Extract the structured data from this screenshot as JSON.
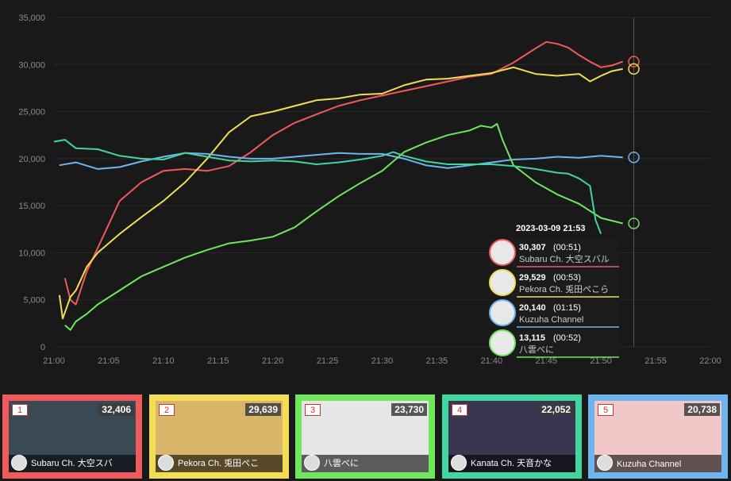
{
  "chart_data": {
    "type": "line",
    "x_ticks": [
      "21:00",
      "21:05",
      "21:10",
      "21:15",
      "21:20",
      "21:25",
      "21:30",
      "21:35",
      "21:40",
      "21:45",
      "21:50",
      "21:55",
      "22:00"
    ],
    "y_ticks": [
      "0",
      "5,000",
      "10,000",
      "15,000",
      "20,000",
      "25,000",
      "30,000",
      "35,000"
    ],
    "xlim": [
      "21:00",
      "22:00"
    ],
    "ylim": [
      0,
      35000
    ],
    "grid": true,
    "cursor_time": "21:53",
    "series": [
      {
        "name": "Subaru Ch. 大空スバル",
        "color": "#f05a5a",
        "points": [
          [
            1.0,
            7300
          ],
          [
            1.5,
            5000
          ],
          [
            2.0,
            4500
          ],
          [
            3.0,
            8000
          ],
          [
            4.0,
            10500
          ],
          [
            5.0,
            13000
          ],
          [
            6.0,
            15500
          ],
          [
            8.0,
            17500
          ],
          [
            10.0,
            18700
          ],
          [
            12.0,
            18900
          ],
          [
            14.0,
            18700
          ],
          [
            16.0,
            19200
          ],
          [
            18.0,
            20700
          ],
          [
            20.0,
            22500
          ],
          [
            22.0,
            23800
          ],
          [
            24.0,
            24700
          ],
          [
            26.0,
            25600
          ],
          [
            28.0,
            26200
          ],
          [
            30.0,
            26700
          ],
          [
            32.0,
            27200
          ],
          [
            34.0,
            27700
          ],
          [
            36.0,
            28200
          ],
          [
            38.0,
            28700
          ],
          [
            40.0,
            29000
          ],
          [
            42.0,
            30200
          ],
          [
            44.0,
            31700
          ],
          [
            45.0,
            32400
          ],
          [
            46.0,
            32200
          ],
          [
            47.0,
            31800
          ],
          [
            48.0,
            31000
          ],
          [
            49.0,
            30300
          ],
          [
            50.0,
            29700
          ],
          [
            51.0,
            29900
          ],
          [
            52.0,
            30307
          ]
        ]
      },
      {
        "name": "Pekora Ch. 兎田ぺこら",
        "color": "#f2dd55",
        "points": [
          [
            0.5,
            5500
          ],
          [
            0.8,
            3000
          ],
          [
            1.5,
            5300
          ],
          [
            2.0,
            6000
          ],
          [
            3.0,
            8500
          ],
          [
            4.0,
            10000
          ],
          [
            6.0,
            12000
          ],
          [
            8.0,
            13800
          ],
          [
            10.0,
            15500
          ],
          [
            12.0,
            17500
          ],
          [
            14.0,
            20000
          ],
          [
            16.0,
            22800
          ],
          [
            18.0,
            24500
          ],
          [
            20.0,
            25000
          ],
          [
            22.0,
            25600
          ],
          [
            24.0,
            26200
          ],
          [
            26.0,
            26400
          ],
          [
            28.0,
            26800
          ],
          [
            30.0,
            26900
          ],
          [
            32.0,
            27800
          ],
          [
            34.0,
            28400
          ],
          [
            36.0,
            28500
          ],
          [
            38.0,
            28800
          ],
          [
            40.0,
            29100
          ],
          [
            42.0,
            29700
          ],
          [
            44.0,
            29000
          ],
          [
            46.0,
            28800
          ],
          [
            48.0,
            29000
          ],
          [
            49.0,
            28200
          ],
          [
            50.0,
            28800
          ],
          [
            51.0,
            29300
          ],
          [
            52.0,
            29529
          ]
        ]
      },
      {
        "name": "Kuzuha Channel",
        "color": "#6eb5f0",
        "points": [
          [
            0.5,
            19300
          ],
          [
            2.0,
            19600
          ],
          [
            4.0,
            18900
          ],
          [
            6.0,
            19100
          ],
          [
            8.0,
            19700
          ],
          [
            10.0,
            20200
          ],
          [
            12.0,
            20600
          ],
          [
            14.0,
            20500
          ],
          [
            16.0,
            20200
          ],
          [
            18.0,
            20000
          ],
          [
            20.0,
            20000
          ],
          [
            22.0,
            20200
          ],
          [
            24.0,
            20400
          ],
          [
            26.0,
            20600
          ],
          [
            28.0,
            20500
          ],
          [
            30.0,
            20500
          ],
          [
            32.0,
            20000
          ],
          [
            34.0,
            19300
          ],
          [
            36.0,
            19000
          ],
          [
            38.0,
            19300
          ],
          [
            40.0,
            19600
          ],
          [
            42.0,
            19900
          ],
          [
            44.0,
            20000
          ],
          [
            46.0,
            20200
          ],
          [
            48.0,
            20100
          ],
          [
            50.0,
            20300
          ],
          [
            52.0,
            20140
          ]
        ]
      },
      {
        "name": "八雲べに",
        "color": "#6ee85a",
        "points": [
          [
            1.0,
            2300
          ],
          [
            1.5,
            1800
          ],
          [
            2.0,
            2700
          ],
          [
            3.0,
            3500
          ],
          [
            4.0,
            4500
          ],
          [
            6.0,
            6000
          ],
          [
            8.0,
            7500
          ],
          [
            10.0,
            8500
          ],
          [
            12.0,
            9500
          ],
          [
            14.0,
            10300
          ],
          [
            16.0,
            11000
          ],
          [
            18.0,
            11300
          ],
          [
            20.0,
            11700
          ],
          [
            22.0,
            12700
          ],
          [
            24.0,
            14400
          ],
          [
            26.0,
            16000
          ],
          [
            28.0,
            17400
          ],
          [
            30.0,
            18700
          ],
          [
            32.0,
            20700
          ],
          [
            34.0,
            21700
          ],
          [
            36.0,
            22500
          ],
          [
            38.0,
            23000
          ],
          [
            39.0,
            23500
          ],
          [
            40.0,
            23300
          ],
          [
            40.5,
            23700
          ],
          [
            41.0,
            22000
          ],
          [
            42.0,
            19300
          ],
          [
            44.0,
            17500
          ],
          [
            46.0,
            16200
          ],
          [
            48.0,
            15200
          ],
          [
            50.0,
            13700
          ],
          [
            52.0,
            13115
          ]
        ]
      },
      {
        "name": "",
        "color": "#3fd6a0",
        "points": [
          [
            0.0,
            21800
          ],
          [
            1.0,
            22000
          ],
          [
            2.0,
            21100
          ],
          [
            4.0,
            21000
          ],
          [
            6.0,
            20300
          ],
          [
            8.0,
            20000
          ],
          [
            10.0,
            19900
          ],
          [
            12.0,
            20600
          ],
          [
            14.0,
            20200
          ],
          [
            16.0,
            19800
          ],
          [
            18.0,
            19700
          ],
          [
            20.0,
            19800
          ],
          [
            22.0,
            19700
          ],
          [
            24.0,
            19400
          ],
          [
            26.0,
            19600
          ],
          [
            28.0,
            19900
          ],
          [
            30.0,
            20300
          ],
          [
            31.0,
            20700
          ],
          [
            32.0,
            20300
          ],
          [
            34.0,
            19700
          ],
          [
            36.0,
            19400
          ],
          [
            38.0,
            19400
          ],
          [
            40.0,
            19400
          ],
          [
            42.0,
            19200
          ],
          [
            44.0,
            18900
          ],
          [
            46.0,
            18500
          ],
          [
            47.0,
            18400
          ],
          [
            48.0,
            17900
          ],
          [
            49.0,
            17100
          ],
          [
            49.5,
            13500
          ],
          [
            50.0,
            12000
          ]
        ]
      }
    ],
    "tooltip": {
      "time": "2023-03-09 21:53",
      "rows": [
        {
          "value": "30,307",
          "duration": "(00:51)",
          "name": "Subaru Ch. 大空スバル",
          "color": "#f05a5a"
        },
        {
          "value": "29,529",
          "duration": "(00:53)",
          "name": "Pekora Ch. 兎田ぺこら",
          "color": "#f2dd55"
        },
        {
          "value": "20,140",
          "duration": "(01:15)",
          "name": "Kuzuha Channel",
          "color": "#6eb5f0"
        },
        {
          "value": "13,115",
          "duration": "(00:52)",
          "name": "八雲べに",
          "color": "#6ee85a"
        }
      ]
    }
  },
  "cards": [
    {
      "rank": "1",
      "count": "32,406",
      "name": "Subaru Ch. 大空スバ",
      "color": "#f05a5a",
      "thumb": "#3a4a55"
    },
    {
      "rank": "2",
      "count": "29,639",
      "name": "Pekora Ch. 兎田ぺこ",
      "color": "#f2dd55",
      "thumb": "#d9b56a"
    },
    {
      "rank": "3",
      "count": "23,730",
      "name": "八雲べに",
      "color": "#6ee85a",
      "thumb": "#e6e6e6"
    },
    {
      "rank": "4",
      "count": "22,052",
      "name": "Kanata Ch. 天音かな",
      "color": "#3fd6a0",
      "thumb": "#3a3550"
    },
    {
      "rank": "5",
      "count": "20,738",
      "name": "Kuzuha Channel",
      "color": "#6eb5f0",
      "thumb": "#f0c8c8"
    }
  ]
}
